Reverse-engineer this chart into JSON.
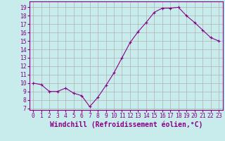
{
  "x": [
    0,
    1,
    2,
    3,
    4,
    5,
    6,
    7,
    8,
    9,
    10,
    11,
    12,
    13,
    14,
    15,
    16,
    17,
    18,
    19,
    20,
    21,
    22,
    23
  ],
  "y": [
    10.0,
    9.8,
    9.0,
    9.0,
    9.4,
    8.8,
    8.5,
    7.2,
    8.3,
    9.7,
    11.2,
    13.0,
    14.8,
    16.1,
    17.2,
    18.4,
    18.9,
    18.9,
    19.0,
    18.0,
    17.2,
    16.3,
    15.4,
    15.0
  ],
  "line_color": "#880088",
  "marker": "+",
  "marker_size": 3,
  "bg_color": "#c8ecec",
  "grid_color": "#b0b0b0",
  "ylabel_ticks": [
    7,
    8,
    9,
    10,
    11,
    12,
    13,
    14,
    15,
    16,
    17,
    18,
    19
  ],
  "xlabel_ticks": [
    0,
    1,
    2,
    3,
    4,
    5,
    6,
    7,
    8,
    9,
    10,
    11,
    12,
    13,
    14,
    15,
    16,
    17,
    18,
    19,
    20,
    21,
    22,
    23
  ],
  "xlabel": "Windchill (Refroidissement éolien,°C)",
  "ylim": [
    6.8,
    19.7
  ],
  "xlim": [
    -0.5,
    23.5
  ],
  "tick_fontsize": 5.8,
  "xlabel_fontsize": 7.0
}
